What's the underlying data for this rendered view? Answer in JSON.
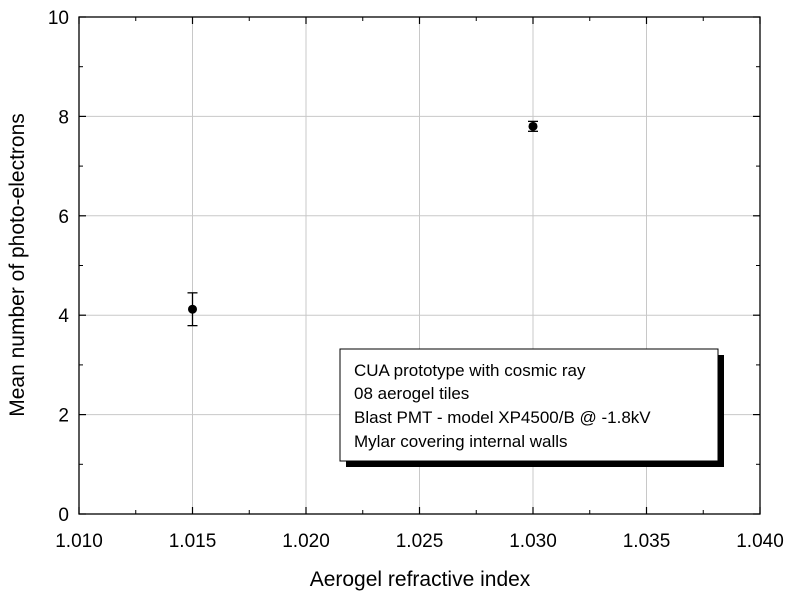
{
  "chart_data": {
    "type": "scatter",
    "title": "",
    "xlabel": "Aerogel refractive index",
    "ylabel": "Mean number of photo-electrons",
    "xlim": [
      1.01,
      1.04
    ],
    "ylim": [
      0,
      10
    ],
    "grid": true,
    "x_ticks": [
      "1.010",
      "1.015",
      "1.020",
      "1.025",
      "1.030",
      "1.035",
      "1.040"
    ],
    "y_ticks": [
      "0",
      "2",
      "4",
      "6",
      "8",
      "10"
    ],
    "series": [
      {
        "name": "CUA prototype",
        "points": [
          {
            "x": 1.015,
            "y": 4.12,
            "err": 0.33
          },
          {
            "x": 1.03,
            "y": 7.8,
            "err": 0.1
          }
        ]
      }
    ],
    "legend_position": "bottom-right",
    "annotation_lines": [
      "CUA prototype with cosmic ray",
      "08 aerogel tiles",
      "Blast PMT - model XP4500/B @ -1.8kV",
      "Mylar covering internal walls"
    ]
  }
}
